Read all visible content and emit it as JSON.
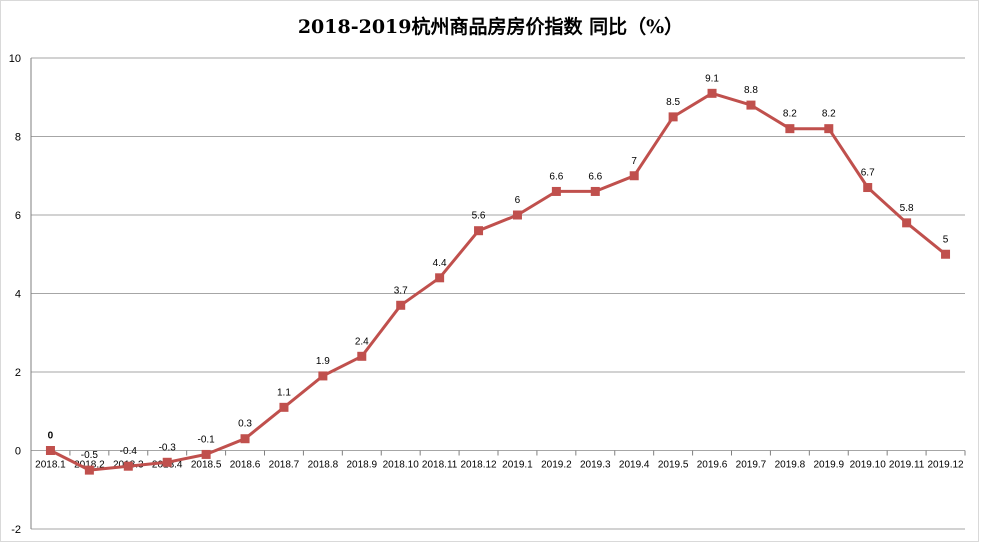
{
  "chart_data": {
    "type": "line",
    "title": "2018-2019杭州商品房房价指数 同比（%）",
    "xlabel": "",
    "ylabel": "",
    "ylim": [
      -2,
      10
    ],
    "yticks": [
      -2,
      0,
      2,
      4,
      6,
      8,
      10
    ],
    "grid": true,
    "legend": "none",
    "colors": {
      "line": "#c0504d",
      "marker": "#c0504d",
      "grid": "#a6a6a6"
    },
    "categories": [
      "2018.1",
      "2018.2",
      "2018.3",
      "2018.4",
      "2018.5",
      "2018.6",
      "2018.7",
      "2018.8",
      "2018.9",
      "2018.10",
      "2018.11",
      "2018.12",
      "2019.1",
      "2019.2",
      "2019.3",
      "2019.4",
      "2019.5",
      "2019.6",
      "2019.7",
      "2019.8",
      "2019.9",
      "2019.10",
      "2019.11",
      "2019.12"
    ],
    "series": [
      {
        "values": [
          0,
          -0.5,
          -0.4,
          -0.3,
          -0.1,
          0.3,
          1.1,
          1.9,
          2.4,
          3.7,
          4.4,
          5.6,
          6,
          6.6,
          6.6,
          7,
          8.5,
          9.1,
          8.8,
          8.2,
          8.2,
          6.7,
          5.8,
          5
        ]
      }
    ]
  }
}
